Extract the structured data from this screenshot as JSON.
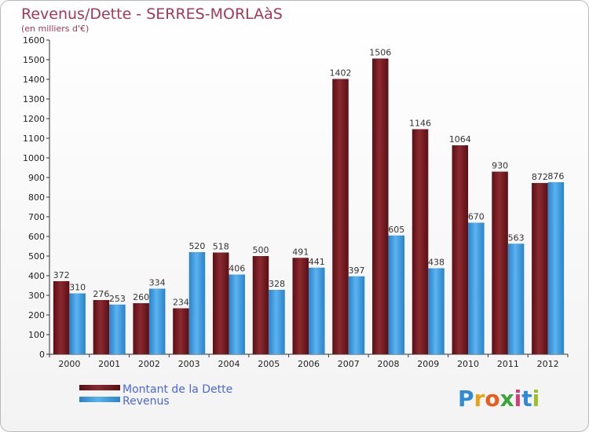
{
  "chart_data": {
    "type": "bar",
    "title": "Revenus/Dette - SERRES-MORLAàS",
    "subtitle": "(en milliers d'€)",
    "categories": [
      "2000",
      "2001",
      "2002",
      "2003",
      "2004",
      "2005",
      "2006",
      "2007",
      "2008",
      "2009",
      "2010",
      "2011",
      "2012"
    ],
    "series": [
      {
        "name": "Montant de la Dette",
        "color": "#7a1c22",
        "values": [
          372,
          276,
          260,
          234,
          518,
          500,
          491,
          1402,
          1506,
          1146,
          1064,
          930,
          872
        ]
      },
      {
        "name": "Revenus",
        "color": "#3c9ce6",
        "values": [
          310,
          253,
          334,
          520,
          406,
          328,
          441,
          397,
          605,
          438,
          670,
          563,
          876
        ]
      }
    ],
    "ylim": [
      0,
      1600
    ],
    "yticks": [
      0,
      100,
      200,
      300,
      400,
      500,
      600,
      700,
      800,
      900,
      1000,
      1100,
      1200,
      1300,
      1400,
      1500,
      1600
    ],
    "grid": false,
    "legend_position": "bottom-left"
  },
  "logo": {
    "letters": [
      "P",
      "r",
      "o",
      "x",
      "i",
      "t",
      "i"
    ],
    "colors": [
      "#2f8ad8",
      "#e8a11a",
      "#e85d1c",
      "#3aa53a",
      "#d63b7a",
      "#2f8ad8",
      "#9bbf2a"
    ]
  }
}
